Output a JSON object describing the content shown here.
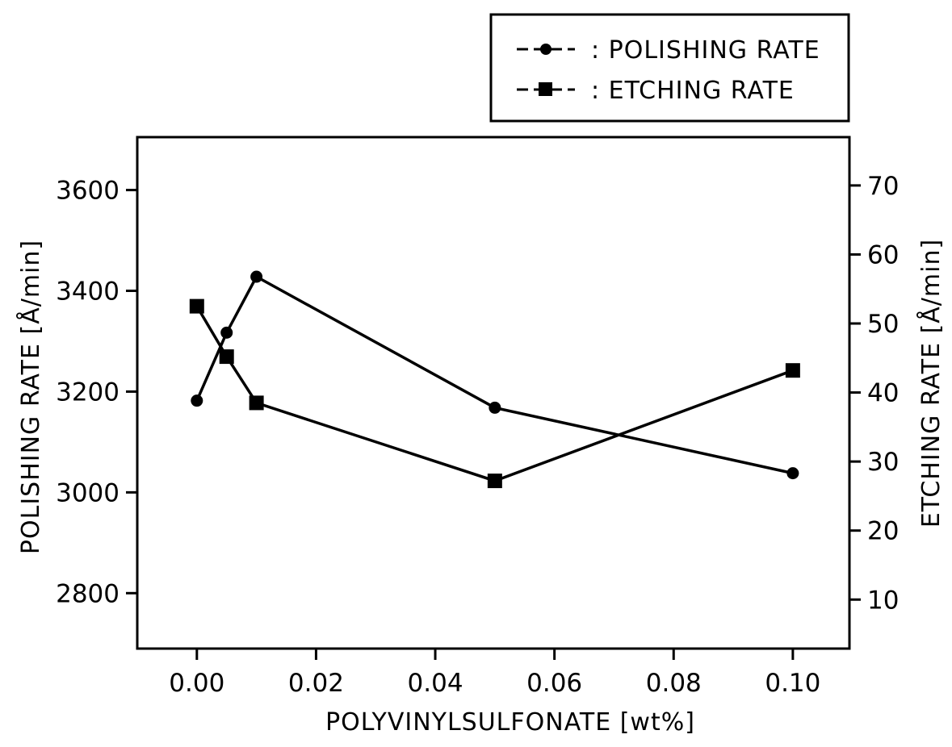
{
  "chart_data": {
    "type": "line",
    "xlabel": "POLYVINYLSULFONATE [wt%]",
    "ylabel_left": "POLISHING RATE [Å/min]",
    "ylabel_right": "ETCHING RATE [Å/min]",
    "xlim": [
      -0.01,
      0.1095
    ],
    "ylim_left": [
      2690,
      3705
    ],
    "ylim_right": [
      2.9,
      77
    ],
    "x_ticks": [
      0.0,
      0.02,
      0.04,
      0.06,
      0.08,
      0.1
    ],
    "x_tick_labels": [
      "0.00",
      "0.02",
      "0.04",
      "0.06",
      "0.08",
      "0.10"
    ],
    "y_left_ticks": [
      2800,
      3000,
      3200,
      3400,
      3600
    ],
    "y_left_tick_labels": [
      "2800",
      "3000",
      "3200",
      "3400",
      "3600"
    ],
    "y_right_ticks": [
      10,
      20,
      30,
      40,
      50,
      60,
      70
    ],
    "y_right_tick_labels": [
      "10",
      "20",
      "30",
      "40",
      "50",
      "60",
      "70"
    ],
    "legend_position": "top-right, above plot",
    "grid": false,
    "series": [
      {
        "name": "POLISHING RATE",
        "legend_label": ": POLISHING RATE",
        "marker": "circle",
        "axis": "left",
        "x": [
          0.0,
          0.005,
          0.01,
          0.05,
          0.1
        ],
        "y": [
          3182,
          3317,
          3428,
          3168,
          3038
        ]
      },
      {
        "name": "ETCHING RATE",
        "legend_label": ": ETCHING RATE",
        "marker": "square",
        "axis": "right",
        "x": [
          0.0,
          0.005,
          0.01,
          0.05,
          0.1
        ],
        "y": [
          52.5,
          45.2,
          38.5,
          27.2,
          43.2
        ]
      }
    ]
  }
}
